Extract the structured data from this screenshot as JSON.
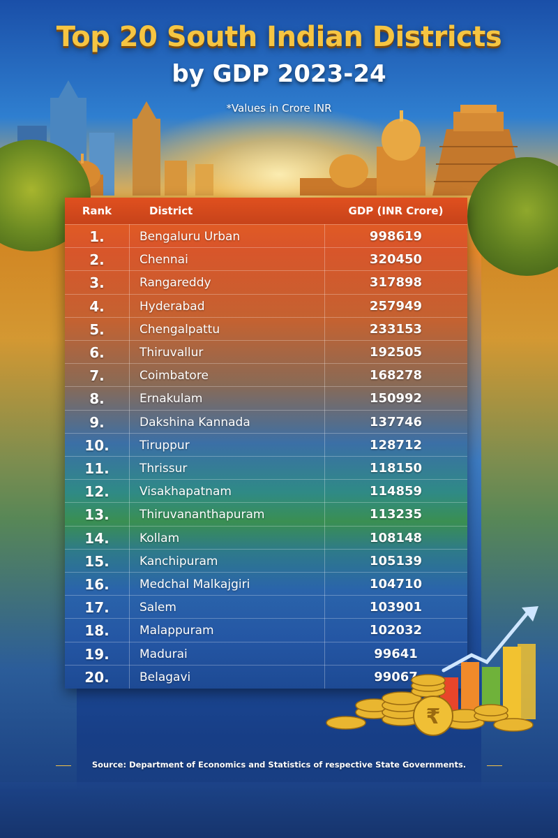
{
  "header": {
    "title_line1": "Top 20 South Indian Districts",
    "title_line2": "by GDP 2023-24",
    "subtitle": "*Values in Crore INR"
  },
  "table": {
    "columns": [
      "Rank",
      "District",
      "GDP (INR Crore)"
    ],
    "rows": [
      {
        "rank": "1.",
        "district": "Bengaluru Urban",
        "gdp": "998619"
      },
      {
        "rank": "2.",
        "district": "Chennai",
        "gdp": "320450"
      },
      {
        "rank": "3.",
        "district": "Rangareddy",
        "gdp": "317898"
      },
      {
        "rank": "4.",
        "district": "Hyderabad",
        "gdp": "257949"
      },
      {
        "rank": "5.",
        "district": "Chengalpattu",
        "gdp": "233153"
      },
      {
        "rank": "6.",
        "district": "Thiruvallur",
        "gdp": "192505"
      },
      {
        "rank": "7.",
        "district": "Coimbatore",
        "gdp": "168278"
      },
      {
        "rank": "8.",
        "district": "Ernakulam",
        "gdp": "150992"
      },
      {
        "rank": "9.",
        "district": "Dakshina Kannada",
        "gdp": "137746"
      },
      {
        "rank": "10.",
        "district": "Tiruppur",
        "gdp": "128712"
      },
      {
        "rank": "11.",
        "district": "Thrissur",
        "gdp": "118150"
      },
      {
        "rank": "12.",
        "district": "Visakhapatnam",
        "gdp": "114859"
      },
      {
        "rank": "13.",
        "district": "Thiruvananthapuram",
        "gdp": "113235"
      },
      {
        "rank": "14.",
        "district": "Kollam",
        "gdp": "108148"
      },
      {
        "rank": "15.",
        "district": "Kanchipuram",
        "gdp": "105139"
      },
      {
        "rank": "16.",
        "district": "Medchal Malkajgiri",
        "gdp": "104710"
      },
      {
        "rank": "17.",
        "district": "Salem",
        "gdp": "103901"
      },
      {
        "rank": "18.",
        "district": "Malappuram",
        "gdp": "102032"
      },
      {
        "rank": "19.",
        "district": "Madurai",
        "gdp": "99641"
      },
      {
        "rank": "20.",
        "district": "Belagavi",
        "gdp": "99067"
      }
    ]
  },
  "footer": {
    "source": "Source: Department of Economics and Statistics of respective State Governments."
  },
  "decor": {
    "icons": [
      "skyline-illustration",
      "temple-gopuram-icon",
      "rupee-coins-icon",
      "growth-bar-chart-icon",
      "trend-arrow-icon"
    ],
    "colors": {
      "title_gold": "#f6c542",
      "header_orange": "#e0501f",
      "accent_gold": "#f3c24a"
    }
  }
}
